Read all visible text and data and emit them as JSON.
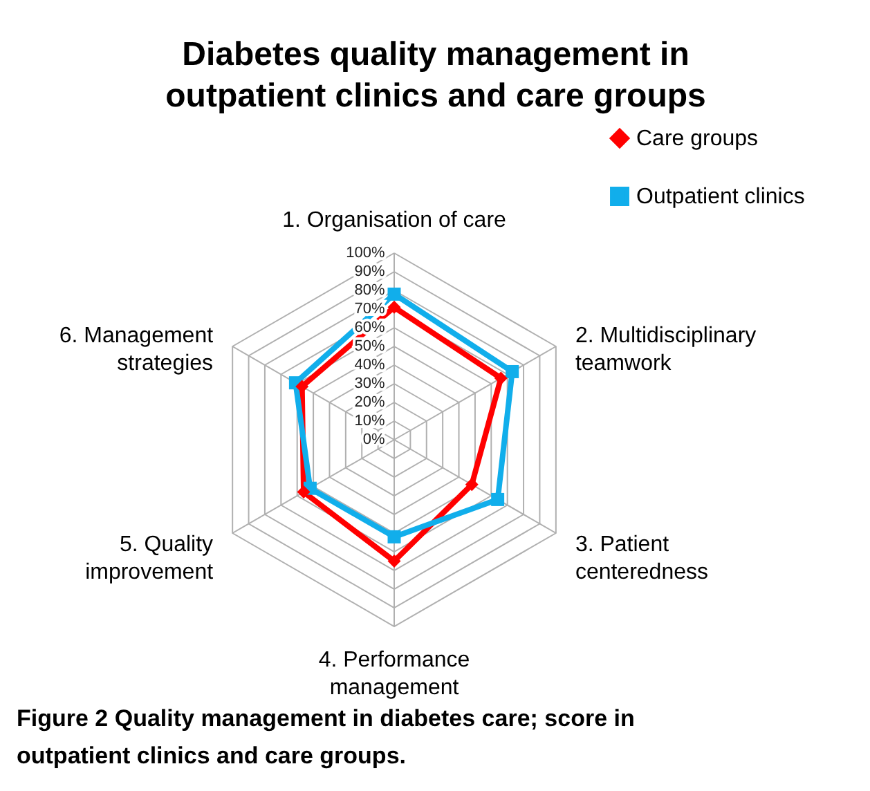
{
  "chart_data": {
    "type": "radar",
    "title": "Diabetes quality management in\noutpatient clinics and care groups",
    "categories": [
      "1. Organisation of care",
      "2. Multidisciplinary teamwork",
      "3. Patient centeredness",
      "4. Performance management",
      "5. Quality improvement",
      "6. Management strategies"
    ],
    "series": [
      {
        "name": "Care groups",
        "color": "#ff0000",
        "marker": "diamond",
        "values": [
          71,
          66,
          48,
          65,
          56,
          57
        ]
      },
      {
        "name": "Outpatient clinics",
        "color": "#11aeeb",
        "marker": "square",
        "values": [
          78,
          73,
          64,
          52,
          52,
          61
        ]
      }
    ],
    "ylim": [
      0,
      100
    ],
    "yticks": [
      {
        "value": 0,
        "label": "0%"
      },
      {
        "value": 10,
        "label": "10%"
      },
      {
        "value": 20,
        "label": "20%"
      },
      {
        "value": 30,
        "label": "30%"
      },
      {
        "value": 40,
        "label": "40%"
      },
      {
        "value": 50,
        "label": "50%"
      },
      {
        "value": 60,
        "label": "60%"
      },
      {
        "value": 70,
        "label": "70%"
      },
      {
        "value": 80,
        "label": "80%"
      },
      {
        "value": 90,
        "label": "90%"
      },
      {
        "value": 100,
        "label": "100%"
      }
    ],
    "grid": true,
    "legend": "top right",
    "annotations": [
      "Figure 2 Quality management in diabetes care; score in outpatient clinics and care groups."
    ]
  }
}
